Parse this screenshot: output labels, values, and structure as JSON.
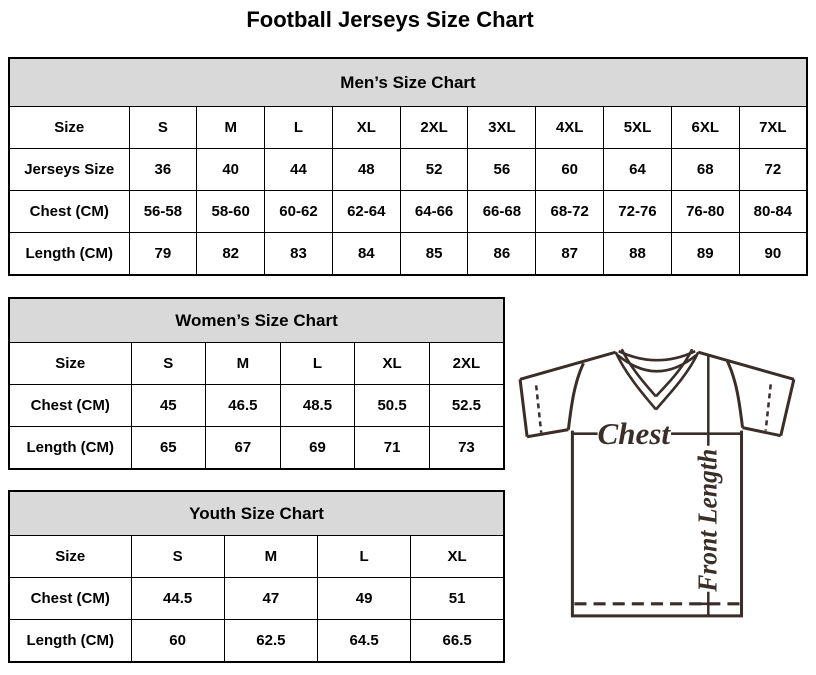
{
  "page": {
    "title": "Football Jerseys Size Chart"
  },
  "colors": {
    "background": "#ffffff",
    "header_bg": "#d9d9d9",
    "border": "#000000",
    "text": "#000000",
    "jersey_line": "#3a2e2a"
  },
  "tables": {
    "men": {
      "title": "Men’s Size Chart",
      "rows": [
        [
          "Size",
          "S",
          "M",
          "L",
          "XL",
          "2XL",
          "3XL",
          "4XL",
          "5XL",
          "6XL",
          "7XL"
        ],
        [
          "Jerseys Size",
          "36",
          "40",
          "44",
          "48",
          "52",
          "56",
          "60",
          "64",
          "68",
          "72"
        ],
        [
          "Chest (CM)",
          "56-58",
          "58-60",
          "60-62",
          "62-64",
          "64-66",
          "66-68",
          "68-72",
          "72-76",
          "76-80",
          "80-84"
        ],
        [
          "Length (CM)",
          "79",
          "82",
          "83",
          "84",
          "85",
          "86",
          "87",
          "88",
          "89",
          "90"
        ]
      ]
    },
    "women": {
      "title": "Women’s Size Chart",
      "rows": [
        [
          "Size",
          "S",
          "M",
          "L",
          "XL",
          "2XL"
        ],
        [
          "Chest (CM)",
          "45",
          "46.5",
          "48.5",
          "50.5",
          "52.5"
        ],
        [
          "Length (CM)",
          "65",
          "67",
          "69",
          "71",
          "73"
        ]
      ]
    },
    "youth": {
      "title": "Youth Size Chart",
      "rows": [
        [
          "Size",
          "S",
          "M",
          "L",
          "XL"
        ],
        [
          "Chest (CM)",
          "44.5",
          "47",
          "49",
          "51"
        ],
        [
          "Length (CM)",
          "60",
          "62.5",
          "64.5",
          "66.5"
        ]
      ]
    }
  },
  "diagram": {
    "chest_label": "Chest",
    "front_length_label": "Front Length"
  }
}
